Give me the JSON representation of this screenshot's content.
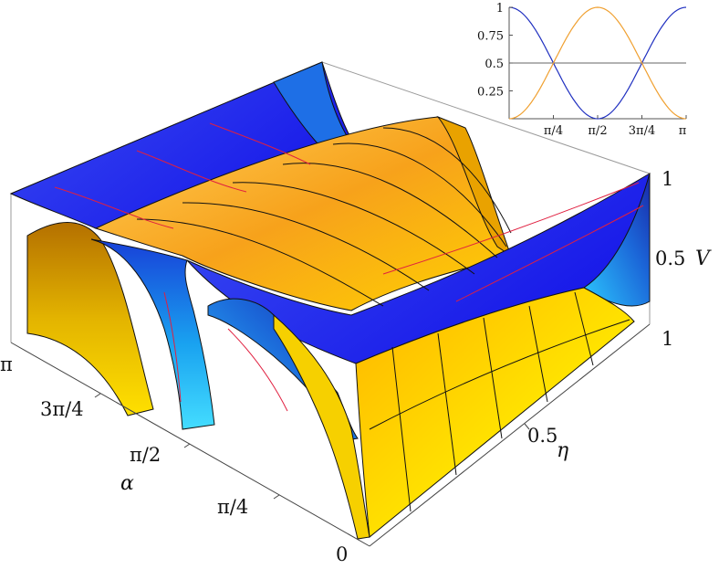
{
  "chart_data": [
    {
      "type": "surface3d",
      "title": "",
      "description_note": "",
      "axes": {
        "x": {
          "label": "α",
          "range": [
            0,
            3.14159
          ],
          "ticks": [
            "0",
            "π/4",
            "π/2",
            "3π/4",
            "π"
          ]
        },
        "y": {
          "label": "η",
          "range": [
            0,
            1
          ],
          "ticks": [
            "0.5"
          ]
        },
        "z": {
          "label": "V",
          "range": [
            0,
            1
          ],
          "ticks": [
            "1",
            "0.5",
            "1"
          ]
        }
      },
      "series": [
        {
          "color": "#f5a000",
          "formula_hint": "V = (1+cos(2α))/2"
        },
        {
          "color": "#1420e6",
          "formula_hint": "V = (1-cos(2α))/2"
        }
      ],
      "grid": true
    },
    {
      "type": "line",
      "x": [
        0,
        0.7854,
        1.5708,
        2.3562,
        3.1416
      ],
      "xticks": [
        "π/4",
        "π/2",
        "3π/4",
        "π"
      ],
      "yticks": [
        "0.25",
        "0.5",
        "0.75",
        "1"
      ],
      "ylim": [
        0,
        1
      ],
      "series": [
        {
          "color": "#2030c0",
          "values": [
            1,
            0.5,
            0,
            0.5,
            1
          ]
        },
        {
          "color": "#f0a030",
          "values": [
            0,
            0.5,
            1,
            0.5,
            0
          ]
        }
      ],
      "reference_line": 0.5
    }
  ],
  "colors": {
    "orange": "#f7a21b",
    "yellow": "#ffee00",
    "blue": "#1a1ff0",
    "cyan": "#2bc7ff",
    "mesh": "#111111",
    "mesh_red": "#e02040"
  }
}
